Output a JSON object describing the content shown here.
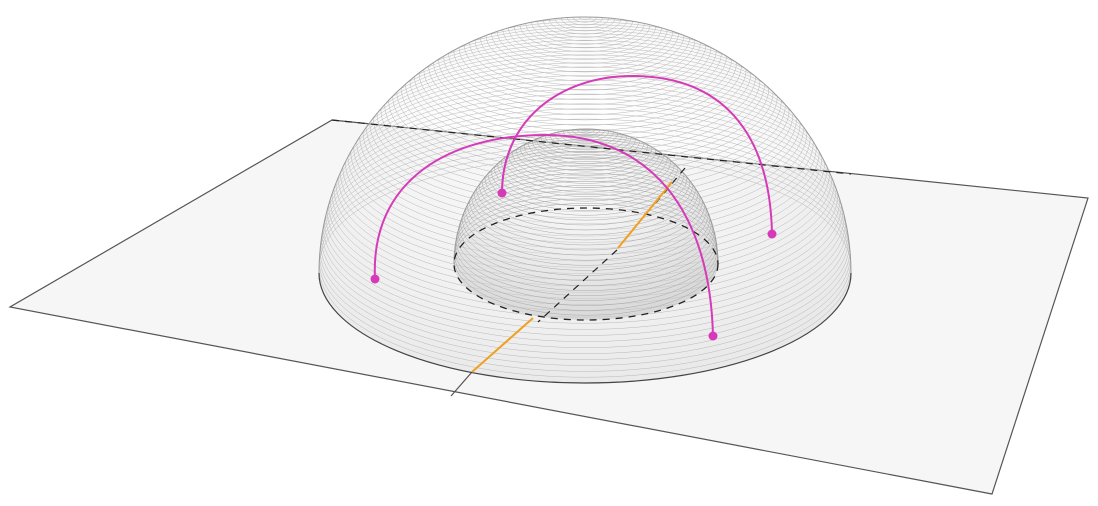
{
  "diagram": {
    "description_visible_text": "",
    "colors": {
      "plane_fill": "#f5f5f5",
      "plane_stroke": "#555555",
      "dome_stroke": "#aaaaaa",
      "dome_fill": "#e9e9e9",
      "dashed": "#222222",
      "geodesic": "#d63ab8",
      "axis_highlight": "#f0a020"
    },
    "icons": [
      "half-plane-diagram",
      "hemisphere-shell",
      "geodesic-arc"
    ]
  }
}
